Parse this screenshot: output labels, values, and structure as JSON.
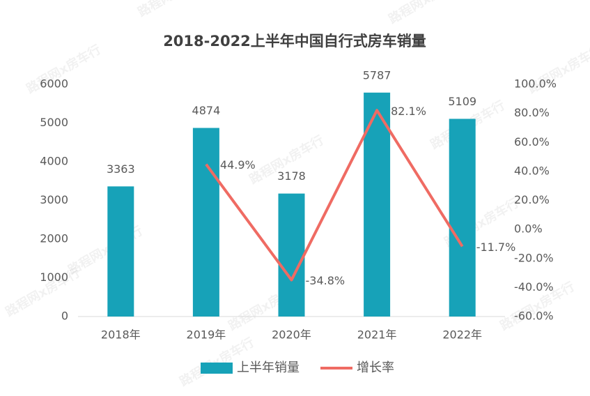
{
  "chart_data": {
    "type": "bar",
    "title": "2018-2022上半年中国自行式房车销量",
    "watermark": "路程网x房车行",
    "categories": [
      "2018年",
      "2019年",
      "2020年",
      "2021年",
      "2022年"
    ],
    "series": [
      {
        "name": "上半年销量",
        "type": "bar",
        "color": "#17a2b8",
        "values": [
          3363,
          4874,
          3178,
          5787,
          5109
        ]
      },
      {
        "name": "增长率",
        "type": "line",
        "axis": "y2",
        "color": "#ef6b63",
        "values": [
          null,
          44.9,
          -34.8,
          82.1,
          -11.7
        ],
        "value_labels": [
          null,
          "44.9%",
          "-34.8%",
          "82.1%",
          "-11.7%"
        ]
      }
    ],
    "ylim": [
      0,
      6000
    ],
    "yticks": [
      0,
      1000,
      2000,
      3000,
      4000,
      5000,
      6000
    ],
    "y2lim": [
      -60,
      100
    ],
    "y2ticks": [
      {
        "value": -60,
        "label": "-60.0%"
      },
      {
        "value": -40,
        "label": "-40.0%"
      },
      {
        "value": -20,
        "label": "-20.0%"
      },
      {
        "value": 0,
        "label": "0.0%"
      },
      {
        "value": 20,
        "label": "20.0%"
      },
      {
        "value": 40,
        "label": "40.0%"
      },
      {
        "value": 60,
        "label": "60.0%"
      },
      {
        "value": 80,
        "label": "80.0%"
      },
      {
        "value": 100,
        "label": "100.0%"
      }
    ],
    "grid": false,
    "legend": "bottom"
  }
}
